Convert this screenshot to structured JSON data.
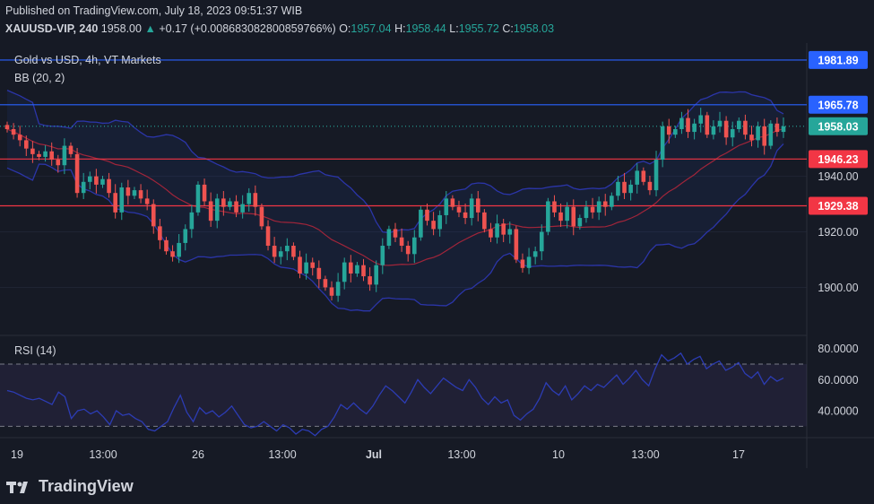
{
  "header": {
    "published": "Published on TradingView.com, July 18, 2023 09:51:37 WIB",
    "symbol": "XAUUSD-VIP, 240",
    "last": "1958.00",
    "change_arrow": "▲",
    "change": "+0.17 (+0.008683082800859766%)",
    "o_label": "O:",
    "o": "1957.04",
    "h_label": "H:",
    "h": "1958.44",
    "l_label": "L:",
    "l": "1955.72",
    "c_label": "C:",
    "c": "1958.03"
  },
  "brand": {
    "name": "TradingView",
    "icon": "tradingview-logo-icon"
  },
  "chart_data": {
    "type": "candlestick",
    "title": "Gold vs USD, 4h, VT Markets",
    "indicator_label": "BB (20, 2)",
    "y_ticks": [
      "1940.00",
      "1920.00",
      "1900.00"
    ],
    "ylim": [
      1884,
      1988
    ],
    "x_ticks": [
      "19",
      "13:00",
      "26",
      "13:00",
      "Jul",
      "13:00",
      "10",
      "13:00",
      "17"
    ],
    "horizontal_levels": [
      {
        "value": 1981.89,
        "label": "1981.89",
        "color": "#2962ff"
      },
      {
        "value": 1965.78,
        "label": "1965.78",
        "color": "#2962ff"
      },
      {
        "value": 1958.03,
        "label": "1958.03",
        "color": "#26a69a",
        "style": "dotted"
      },
      {
        "value": 1946.23,
        "label": "1946.23",
        "color": "#f23645"
      },
      {
        "value": 1929.38,
        "label": "1929.38",
        "color": "#f23645"
      }
    ],
    "close_series": [
      1957,
      1955,
      1953,
      1950,
      1948,
      1947,
      1949,
      1946,
      1944,
      1951,
      1948,
      1934,
      1938,
      1940,
      1937,
      1939,
      1934,
      1927,
      1936,
      1933,
      1935,
      1932,
      1930,
      1922,
      1917,
      1913,
      1911,
      1916,
      1921,
      1927,
      1937,
      1931,
      1924,
      1932,
      1929,
      1931,
      1927,
      1930,
      1934,
      1929,
      1922,
      1915,
      1911,
      1913,
      1915,
      1911,
      1905,
      1909,
      1907,
      1903,
      1900,
      1897,
      1902,
      1909,
      1905,
      1908,
      1904,
      1901,
      1908,
      1915,
      1921,
      1918,
      1915,
      1912,
      1918,
      1928,
      1924,
      1921,
      1926,
      1932,
      1929,
      1927,
      1925,
      1932,
      1927,
      1921,
      1918,
      1923,
      1919,
      1921,
      1910,
      1907,
      1911,
      1913,
      1920,
      1931,
      1927,
      1924,
      1929,
      1922,
      1925,
      1929,
      1927,
      1931,
      1929,
      1933,
      1938,
      1934,
      1937,
      1942,
      1938,
      1935,
      1946,
      1958,
      1955,
      1957,
      1961,
      1956,
      1959,
      1962,
      1955,
      1958,
      1960,
      1954,
      1957,
      1960,
      1955,
      1953,
      1958,
      1951,
      1959,
      1956,
      1958
    ],
    "rsi": {
      "label": "RSI (14)",
      "ylim": [
        25,
        85
      ],
      "y_ticks": [
        "80.0000",
        "60.0000",
        "40.0000"
      ],
      "bands": [
        70,
        30
      ],
      "values": [
        53,
        52,
        50,
        48,
        47,
        48,
        46,
        44,
        52,
        49,
        35,
        40,
        41,
        38,
        40,
        36,
        31,
        40,
        37,
        38,
        35,
        33,
        28,
        27,
        30,
        33,
        42,
        50,
        39,
        33,
        42,
        38,
        40,
        36,
        39,
        43,
        37,
        31,
        29,
        30,
        33,
        30,
        27,
        31,
        29,
        25,
        28,
        27,
        24,
        28,
        30,
        36,
        44,
        41,
        45,
        41,
        38,
        43,
        50,
        56,
        53,
        49,
        45,
        52,
        60,
        55,
        51,
        56,
        61,
        58,
        55,
        53,
        60,
        55,
        48,
        44,
        49,
        45,
        47,
        37,
        34,
        38,
        41,
        48,
        58,
        53,
        50,
        56,
        47,
        51,
        56,
        53,
        57,
        55,
        59,
        63,
        57,
        61,
        66,
        60,
        56,
        67,
        76,
        72,
        74,
        77,
        70,
        73,
        75,
        67,
        70,
        72,
        66,
        68,
        71,
        64,
        61,
        65,
        57,
        62,
        59,
        61
      ]
    }
  }
}
